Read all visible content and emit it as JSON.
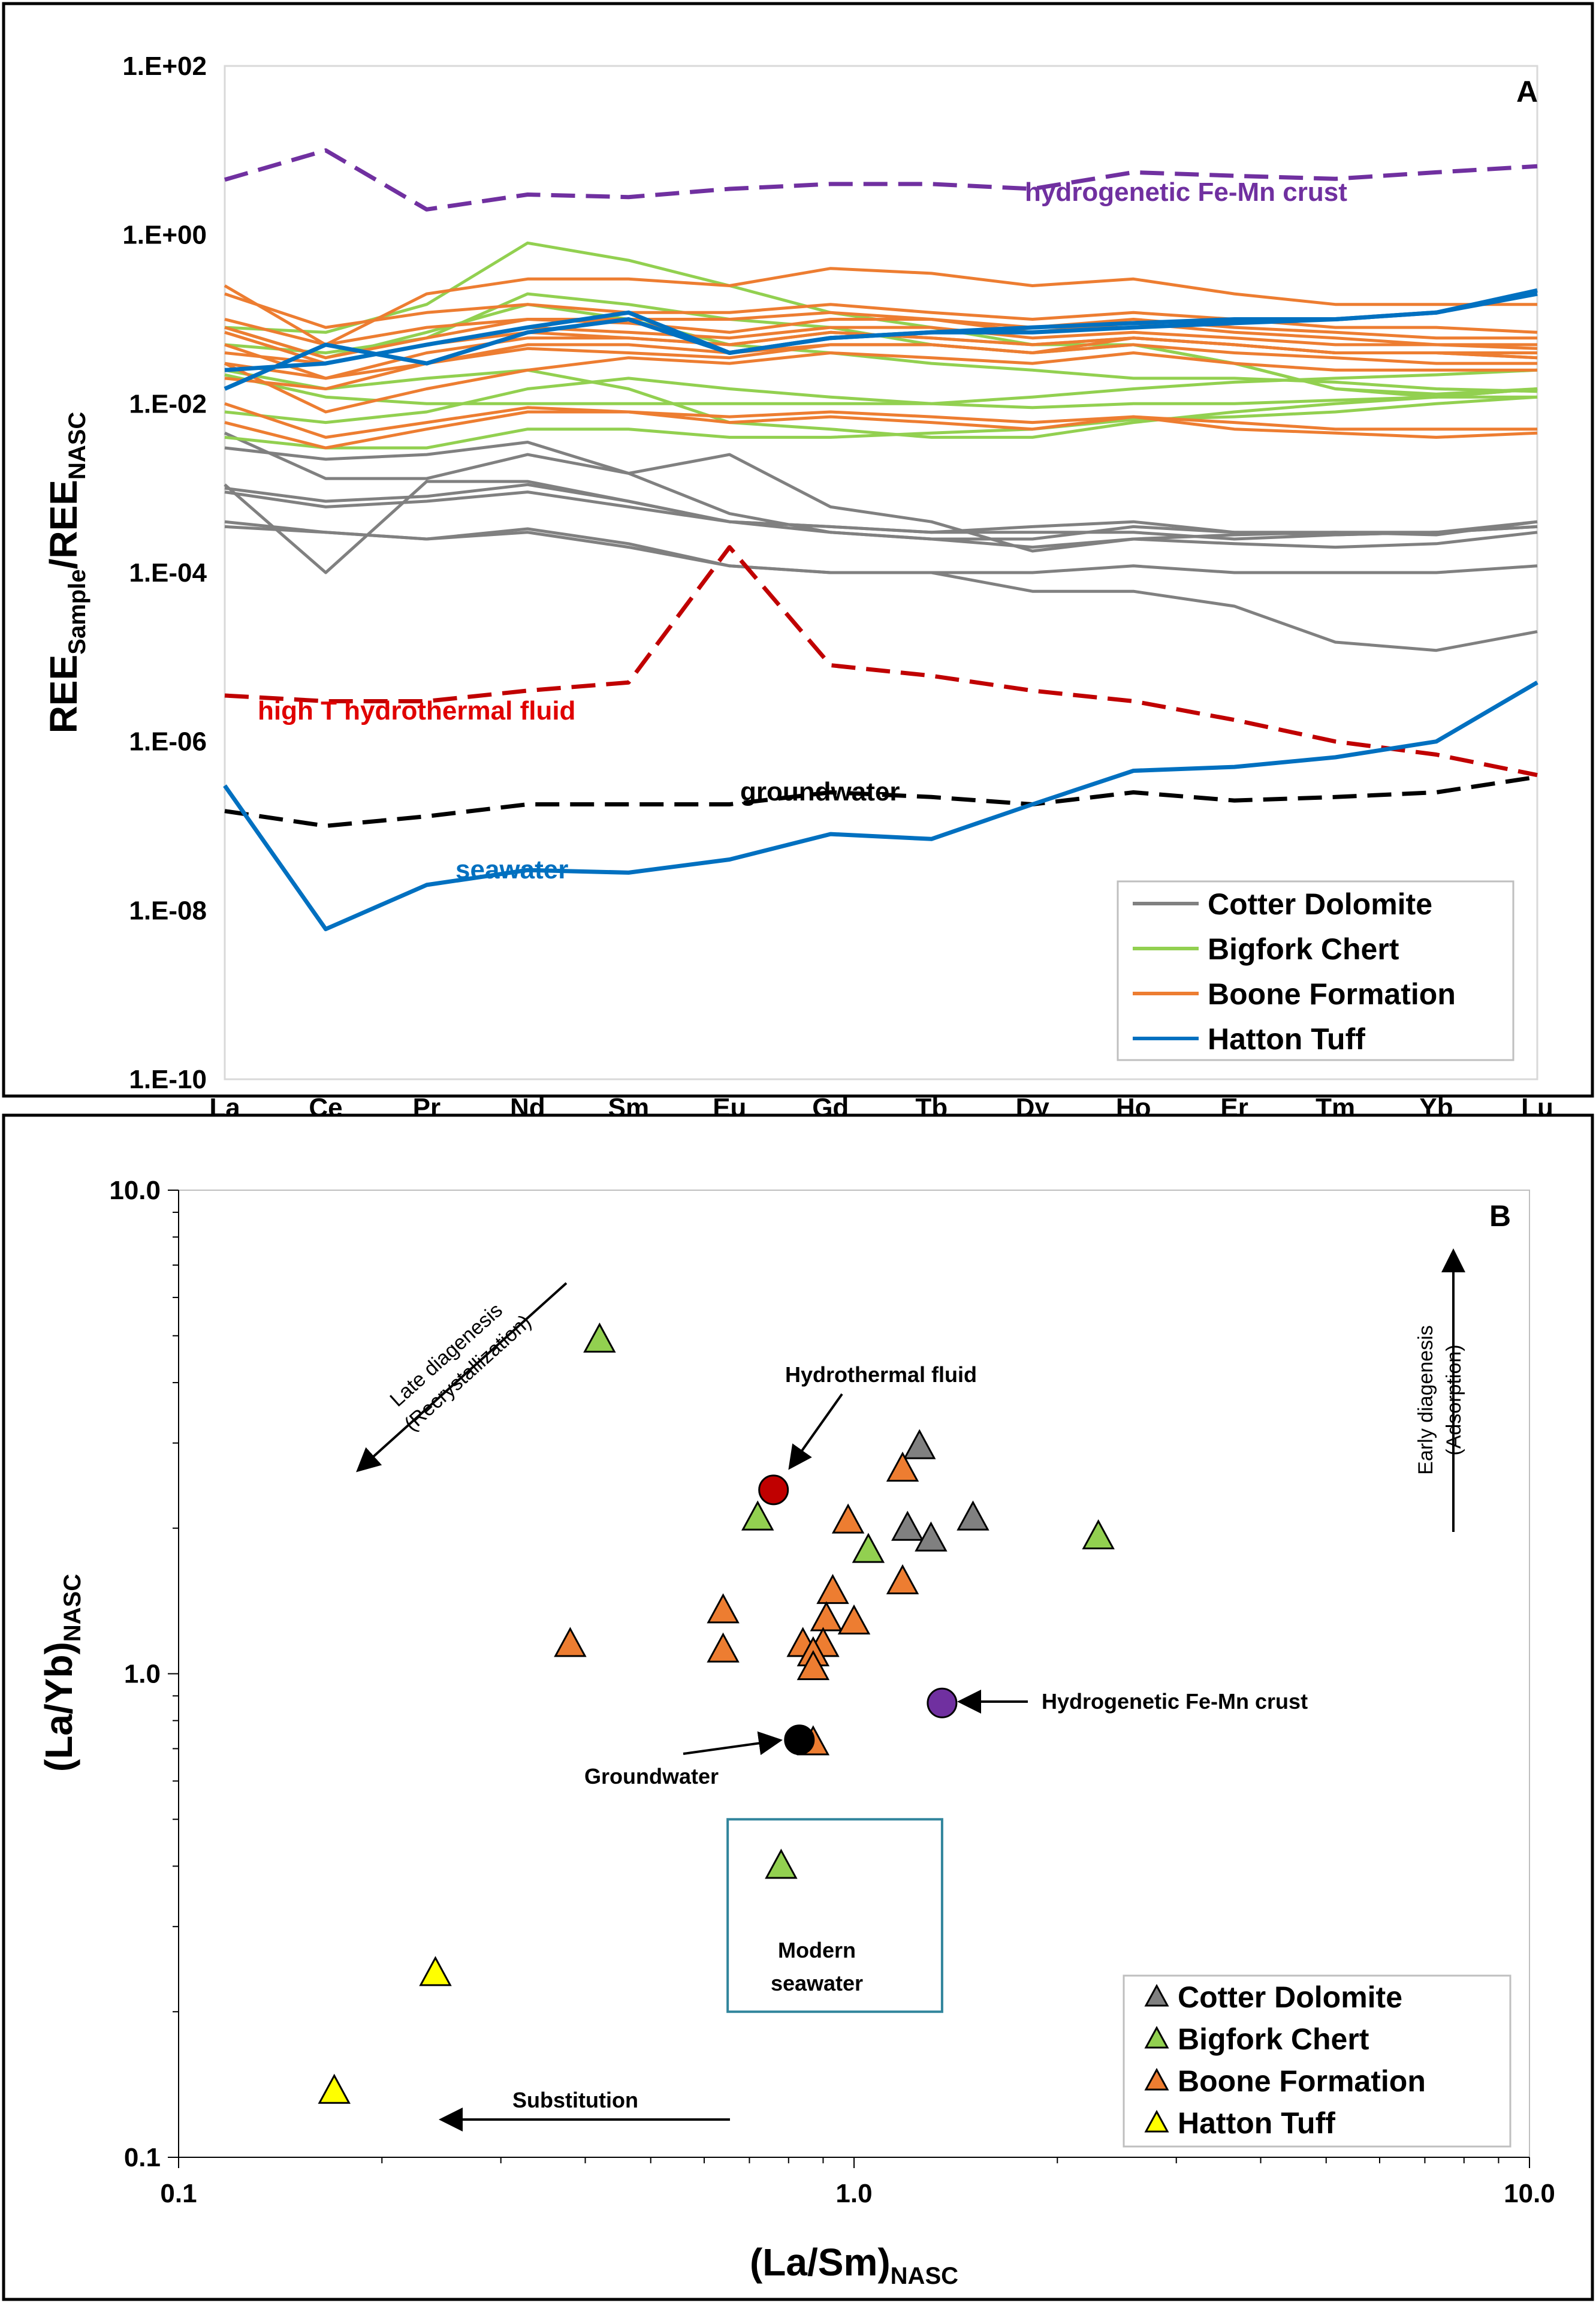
{
  "chart_data": [
    {
      "panel": "A",
      "type": "line",
      "panel_label": "A",
      "ylabel_main": "REE",
      "ylabel_sub1": "Sample",
      "ylabel_slash": "/REE",
      "ylabel_sub2": "NASC",
      "yscale": "log",
      "ylim": [
        1e-10,
        100
      ],
      "yticks": [
        {
          "v": 100,
          "label": "1.E+02"
        },
        {
          "v": 1,
          "label": "1.E+00"
        },
        {
          "v": 0.01,
          "label": "1.E-02"
        },
        {
          "v": 0.0001,
          "label": "1.E-04"
        },
        {
          "v": 1e-06,
          "label": "1.E-06"
        },
        {
          "v": 1e-08,
          "label": "1.E-08"
        },
        {
          "v": 1e-10,
          "label": "1.E-10"
        }
      ],
      "categories": [
        "La",
        "Ce",
        "Pr",
        "Nd",
        "Sm",
        "Eu",
        "Gd",
        "Tb",
        "Dy",
        "Ho",
        "Er",
        "Tm",
        "Yb",
        "Lu"
      ],
      "legend": [
        {
          "label": "Cotter Dolomite",
          "color": "#808080"
        },
        {
          "label": "Bigfork Chert",
          "color": "#92D050"
        },
        {
          "label": "Boone Formation",
          "color": "#ED7D31"
        },
        {
          "label": "Hatton Tuff",
          "color": "#0070C0"
        }
      ],
      "annotations": [
        {
          "text": "hydrogenetic Fe-Mn crust",
          "color": "#7030A0"
        },
        {
          "text": "high T hydrothermal fluid",
          "color": "#E00000"
        },
        {
          "text": "groundwater",
          "color": "#000000"
        },
        {
          "text": "seawater",
          "color": "#0070C0"
        }
      ],
      "reference_series": [
        {
          "name": "hydrogenetic Fe-Mn crust",
          "color": "#7030A0",
          "dash": true,
          "values": [
            4.5,
            10,
            2,
            3,
            2.8,
            3.5,
            4,
            4,
            3.5,
            5.5,
            5,
            4.6,
            5.5,
            6.5
          ]
        },
        {
          "name": "high T hydrothermal fluid",
          "color": "#C00000",
          "dash": true,
          "values": [
            3.5e-06,
            3e-06,
            3e-06,
            4e-06,
            5e-06,
            0.0002,
            8e-06,
            6e-06,
            4e-06,
            3e-06,
            1.8e-06,
            1e-06,
            7e-07,
            4e-07
          ]
        },
        {
          "name": "groundwater",
          "color": "#000000",
          "dash": true,
          "values": [
            1.5e-07,
            1e-07,
            1.3e-07,
            1.8e-07,
            1.8e-07,
            1.8e-07,
            2.5e-07,
            2.2e-07,
            1.8e-07,
            2.5e-07,
            2e-07,
            2.2e-07,
            2.5e-07,
            3.8e-07
          ]
        },
        {
          "name": "seawater",
          "color": "#0070C0",
          "dash": false,
          "values": [
            3e-07,
            6e-09,
            2e-08,
            3e-08,
            2.8e-08,
            4e-08,
            8e-08,
            7e-08,
            1.8e-07,
            4.5e-07,
            5e-07,
            6.5e-07,
            1e-06,
            5e-06
          ]
        }
      ],
      "sample_series": [
        {
          "group": "Cotter Dolomite",
          "color": "#808080",
          "values": [
            0.0045,
            0.0013,
            0.0013,
            0.0025,
            0.0015,
            0.0005,
            0.0003,
            0.00025,
            0.00025,
            0.00035,
            0.0003,
            0.00028,
            0.0003,
            0.0004
          ]
        },
        {
          "group": "Cotter Dolomite",
          "color": "#808080",
          "values": [
            0.003,
            0.0022,
            0.0025,
            0.0035,
            0.0015,
            0.0025,
            0.0006,
            0.0004,
            0.00018,
            0.00025,
            0.00028,
            0.0003,
            0.0003,
            0.00035
          ]
        },
        {
          "group": "Cotter Dolomite",
          "color": "#808080",
          "values": [
            0.0011,
            0.0001,
            0.0012,
            0.0012,
            0.0007,
            0.0004,
            0.00035,
            0.0003,
            0.00035,
            0.0004,
            0.0003,
            0.0003,
            0.00028,
            0.0004
          ]
        },
        {
          "group": "Cotter Dolomite",
          "color": "#808080",
          "values": [
            0.0009,
            0.0006,
            0.0007,
            0.0009,
            0.0006,
            0.0004,
            0.00035,
            0.0003,
            0.0003,
            0.0003,
            0.00025,
            0.00028,
            0.0003,
            0.00035
          ]
        },
        {
          "group": "Cotter Dolomite",
          "color": "#808080",
          "values": [
            0.001,
            0.0007,
            0.0008,
            0.0011,
            0.0007,
            0.0004,
            0.0003,
            0.00025,
            0.0002,
            0.00025,
            0.00022,
            0.0002,
            0.00022,
            0.0003
          ]
        },
        {
          "group": "Cotter Dolomite",
          "color": "#808080",
          "values": [
            0.0004,
            0.0003,
            0.00025,
            0.0003,
            0.0002,
            0.00012,
            0.0001,
            0.0001,
            6e-05,
            6e-05,
            4e-05,
            1.5e-05,
            1.2e-05,
            2e-05
          ]
        },
        {
          "group": "Cotter Dolomite",
          "color": "#808080",
          "values": [
            0.00035,
            0.0003,
            0.00025,
            0.00033,
            0.00022,
            0.00012,
            0.0001,
            0.0001,
            0.0001,
            0.00012,
            0.0001,
            0.0001,
            0.0001,
            0.00012
          ]
        },
        {
          "group": "Bigfork Chert",
          "color": "#92D050",
          "values": [
            0.08,
            0.07,
            0.15,
            0.8,
            0.5,
            0.25,
            0.12,
            0.08,
            0.05,
            0.05,
            0.03,
            0.015,
            0.012,
            0.012
          ]
        },
        {
          "group": "Bigfork Chert",
          "color": "#92D050",
          "values": [
            0.08,
            0.035,
            0.07,
            0.15,
            0.1,
            0.05,
            0.04,
            0.03,
            0.025,
            0.02,
            0.02,
            0.018,
            0.015,
            0.014
          ]
        },
        {
          "group": "Bigfork Chert",
          "color": "#92D050",
          "values": [
            0.05,
            0.04,
            0.06,
            0.2,
            0.15,
            0.1,
            0.08,
            0.05,
            0.04,
            0.05,
            0.03,
            0.015,
            0.013,
            0.015
          ]
        },
        {
          "group": "Bigfork Chert",
          "color": "#92D050",
          "values": [
            0.008,
            0.006,
            0.008,
            0.015,
            0.02,
            0.015,
            0.012,
            0.01,
            0.009,
            0.01,
            0.01,
            0.011,
            0.012,
            0.015
          ]
        },
        {
          "group": "Bigfork Chert",
          "color": "#92D050",
          "values": [
            0.025,
            0.015,
            0.02,
            0.025,
            0.015,
            0.006,
            0.005,
            0.004,
            0.004,
            0.006,
            0.008,
            0.01,
            0.012,
            0.015
          ]
        },
        {
          "group": "Bigfork Chert",
          "color": "#92D050",
          "values": [
            0.004,
            0.003,
            0.003,
            0.005,
            0.005,
            0.004,
            0.004,
            0.0045,
            0.005,
            0.0065,
            0.007,
            0.008,
            0.01,
            0.012
          ]
        },
        {
          "group": "Bigfork Chert",
          "color": "#92D050",
          "values": [
            0.022,
            0.012,
            0.01,
            0.01,
            0.01,
            0.01,
            0.01,
            0.01,
            0.012,
            0.015,
            0.018,
            0.02,
            0.022,
            0.025
          ]
        },
        {
          "group": "Boone Formation",
          "color": "#ED7D31",
          "values": [
            0.08,
            0.035,
            0.06,
            0.1,
            0.09,
            0.07,
            0.1,
            0.1,
            0.07,
            0.09,
            0.07,
            0.06,
            0.05,
            0.05
          ]
        },
        {
          "group": "Boone Formation",
          "color": "#ED7D31",
          "values": [
            0.05,
            0.02,
            0.03,
            0.045,
            0.04,
            0.035,
            0.05,
            0.05,
            0.04,
            0.06,
            0.05,
            0.04,
            0.04,
            0.035
          ]
        },
        {
          "group": "Boone Formation",
          "color": "#ED7D31",
          "values": [
            0.03,
            0.008,
            0.015,
            0.025,
            0.035,
            0.03,
            0.04,
            0.035,
            0.03,
            0.04,
            0.03,
            0.025,
            0.025,
            0.025
          ]
        },
        {
          "group": "Boone Formation",
          "color": "#ED7D31",
          "values": [
            0.006,
            0.003,
            0.005,
            0.008,
            0.008,
            0.006,
            0.007,
            0.006,
            0.005,
            0.007,
            0.005,
            0.0045,
            0.004,
            0.0045
          ]
        },
        {
          "group": "Boone Formation",
          "color": "#ED7D31",
          "values": [
            0.01,
            0.004,
            0.006,
            0.009,
            0.008,
            0.007,
            0.008,
            0.007,
            0.006,
            0.007,
            0.006,
            0.005,
            0.005,
            0.005
          ]
        },
        {
          "group": "Boone Formation",
          "color": "#ED7D31",
          "values": [
            0.1,
            0.05,
            0.08,
            0.1,
            0.1,
            0.1,
            0.12,
            0.1,
            0.08,
            0.1,
            0.08,
            0.07,
            0.06,
            0.06
          ]
        },
        {
          "group": "Boone Formation",
          "color": "#ED7D31",
          "values": [
            0.04,
            0.03,
            0.05,
            0.08,
            0.07,
            0.06,
            0.08,
            0.08,
            0.06,
            0.07,
            0.06,
            0.05,
            0.05,
            0.045
          ]
        },
        {
          "group": "Boone Formation",
          "color": "#ED7D31",
          "values": [
            0.03,
            0.02,
            0.04,
            0.06,
            0.06,
            0.05,
            0.07,
            0.06,
            0.05,
            0.06,
            0.05,
            0.04,
            0.04,
            0.035
          ]
        },
        {
          "group": "Boone Formation",
          "color": "#ED7D31",
          "values": [
            0.02,
            0.015,
            0.03,
            0.05,
            0.05,
            0.04,
            0.05,
            0.05,
            0.04,
            0.05,
            0.04,
            0.035,
            0.03,
            0.03
          ]
        },
        {
          "group": "Boone Formation",
          "color": "#ED7D31",
          "values": [
            0.25,
            0.05,
            0.2,
            0.3,
            0.3,
            0.25,
            0.4,
            0.35,
            0.25,
            0.3,
            0.2,
            0.15,
            0.15,
            0.15
          ]
        },
        {
          "group": "Boone Formation",
          "color": "#ED7D31",
          "values": [
            0.2,
            0.08,
            0.12,
            0.15,
            0.12,
            0.12,
            0.15,
            0.12,
            0.1,
            0.12,
            0.1,
            0.08,
            0.08,
            0.07
          ]
        },
        {
          "group": "Boone Formation",
          "color": "#ED7D31",
          "values": [
            0.07,
            0.03,
            0.05,
            0.07,
            0.06,
            0.05,
            0.07,
            0.06,
            0.05,
            0.06,
            0.05,
            0.04,
            0.04,
            0.04
          ]
        },
        {
          "group": "Hatton Tuff",
          "color": "#0070C0",
          "values": [
            0.015,
            0.05,
            0.03,
            0.07,
            0.1,
            0.04,
            0.06,
            0.07,
            0.08,
            0.09,
            0.1,
            0.1,
            0.12,
            0.2
          ]
        },
        {
          "group": "Hatton Tuff",
          "color": "#0070C0",
          "values": [
            0.025,
            0.03,
            0.05,
            0.08,
            0.12,
            0.04,
            0.06,
            0.07,
            0.07,
            0.08,
            0.09,
            0.1,
            0.12,
            0.22
          ]
        }
      ]
    },
    {
      "panel": "B",
      "type": "scatter",
      "panel_label": "B",
      "xscale": "log",
      "yscale": "log",
      "xlim": [
        0.1,
        10
      ],
      "ylim": [
        0.1,
        10
      ],
      "xticks": [
        "0.1",
        "1.0",
        "10.0"
      ],
      "yticks": [
        "0.1",
        "1.0",
        "10.0"
      ],
      "xlabel_main": "(La/Sm)",
      "xlabel_sub": "NASC",
      "ylabel_main": "(La/Yb)",
      "ylabel_sub": "NASC",
      "legend": [
        {
          "label": "Cotter Dolomite",
          "color": "#808080"
        },
        {
          "label": "Bigfork Chert",
          "color": "#92D050"
        },
        {
          "label": "Boone Formation",
          "color": "#ED7D31"
        },
        {
          "label": "Hatton Tuff",
          "color": "#FFFF00"
        }
      ],
      "annotations": {
        "hydrothermal": "Hydrothermal fluid",
        "fe_mn": "Hydrogenetic Fe-Mn crust",
        "groundwater": "Groundwater",
        "modern_seawater_line1": "Modern",
        "modern_seawater_line2": "seawater",
        "substitution": "Substitution",
        "late_line1": "Late diagenesis",
        "late_line2": "(Recrystallization)",
        "early_line1": "Early diagenesis",
        "early_line2": "(Adsorption)"
      },
      "modern_seawater_box": {
        "x": [
          0.65,
          1.35
        ],
        "y": [
          0.2,
          0.5
        ]
      },
      "points": [
        {
          "group": "Cotter Dolomite",
          "color": "#808080",
          "x": 1.25,
          "y": 2.95
        },
        {
          "group": "Cotter Dolomite",
          "color": "#808080",
          "x": 1.2,
          "y": 2.0
        },
        {
          "group": "Cotter Dolomite",
          "color": "#808080",
          "x": 1.3,
          "y": 1.9
        },
        {
          "group": "Cotter Dolomite",
          "color": "#808080",
          "x": 1.5,
          "y": 2.1
        },
        {
          "group": "Bigfork Chert",
          "color": "#92D050",
          "x": 0.42,
          "y": 4.9
        },
        {
          "group": "Bigfork Chert",
          "color": "#92D050",
          "x": 0.72,
          "y": 2.1
        },
        {
          "group": "Bigfork Chert",
          "color": "#92D050",
          "x": 1.05,
          "y": 1.8
        },
        {
          "group": "Bigfork Chert",
          "color": "#92D050",
          "x": 2.3,
          "y": 1.92
        },
        {
          "group": "Bigfork Chert",
          "color": "#92D050",
          "x": 0.78,
          "y": 0.4
        },
        {
          "group": "Boone Formation",
          "color": "#ED7D31",
          "x": 1.18,
          "y": 2.65
        },
        {
          "group": "Boone Formation",
          "color": "#ED7D31",
          "x": 0.98,
          "y": 2.07
        },
        {
          "group": "Boone Formation",
          "color": "#ED7D31",
          "x": 1.18,
          "y": 1.55
        },
        {
          "group": "Boone Formation",
          "color": "#ED7D31",
          "x": 0.93,
          "y": 1.48
        },
        {
          "group": "Boone Formation",
          "color": "#ED7D31",
          "x": 0.64,
          "y": 1.35
        },
        {
          "group": "Boone Formation",
          "color": "#ED7D31",
          "x": 0.91,
          "y": 1.3
        },
        {
          "group": "Boone Formation",
          "color": "#ED7D31",
          "x": 1.0,
          "y": 1.28
        },
        {
          "group": "Boone Formation",
          "color": "#ED7D31",
          "x": 0.38,
          "y": 1.15
        },
        {
          "group": "Boone Formation",
          "color": "#ED7D31",
          "x": 0.64,
          "y": 1.12
        },
        {
          "group": "Boone Formation",
          "color": "#ED7D31",
          "x": 0.84,
          "y": 1.15
        },
        {
          "group": "Boone Formation",
          "color": "#ED7D31",
          "x": 0.9,
          "y": 1.15
        },
        {
          "group": "Boone Formation",
          "color": "#ED7D31",
          "x": 0.87,
          "y": 1.1
        },
        {
          "group": "Boone Formation",
          "color": "#ED7D31",
          "x": 0.87,
          "y": 1.03
        },
        {
          "group": "Boone Formation",
          "color": "#ED7D31",
          "x": 0.87,
          "y": 0.72
        },
        {
          "group": "Hatton Tuff",
          "color": "#FFFF00",
          "x": 0.24,
          "y": 0.24
        },
        {
          "group": "Hatton Tuff",
          "color": "#FFFF00",
          "x": 0.17,
          "y": 0.137
        }
      ],
      "reference_points": [
        {
          "name": "Hydrothermal fluid",
          "color": "#C00000",
          "x": 0.76,
          "y": 2.4
        },
        {
          "name": "Hydrogenetic Fe-Mn crust",
          "color": "#7030A0",
          "x": 1.35,
          "y": 0.87
        },
        {
          "name": "Groundwater",
          "color": "#000000",
          "x": 0.83,
          "y": 0.73
        }
      ]
    }
  ]
}
